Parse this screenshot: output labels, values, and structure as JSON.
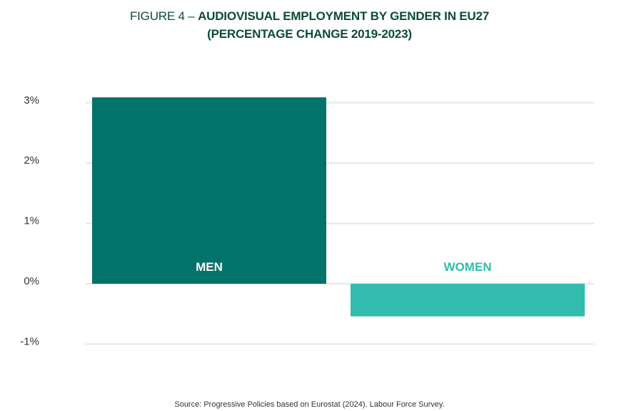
{
  "title": {
    "line1_prefix": "FIGURE 4 – ",
    "line1_main": "AUDIOVISUAL EMPLOYMENT BY GENDER IN EU27",
    "line2": "(PERCENTAGE CHANGE 2019-2023)"
  },
  "source": "Source: Progressive Policies based on Eurostat (2024). Labour Force Survey.",
  "chart_data": {
    "type": "bar",
    "title": "FIGURE 4 – AUDIOVISUAL EMPLOYMENT BY GENDER IN EU27 (PERCENTAGE CHANGE 2019-2023)",
    "categories": [
      "MEN",
      "WOMEN"
    ],
    "values": [
      3.09,
      -0.54
    ],
    "colors": [
      "#02736b",
      "#31bcad"
    ],
    "label_colors": [
      "#ffffff",
      "#31bcad"
    ],
    "ylabel": "",
    "xlabel": "",
    "ylim": [
      -1,
      3
    ],
    "yticks": [
      3,
      2,
      1,
      0,
      -1
    ],
    "ytick_labels": [
      "3%",
      "2%",
      "1%",
      "0%",
      "-1%"
    ],
    "grid": true
  }
}
